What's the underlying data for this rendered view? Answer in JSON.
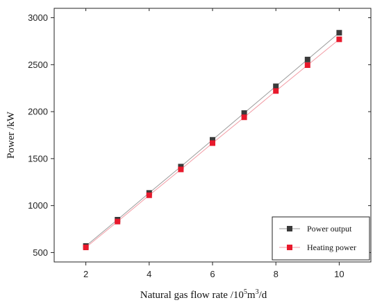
{
  "chart_data": {
    "type": "line",
    "xlabel": "Natural gas flow rate  /10",
    "xlabel_sup1": "5",
    "xlabel_mid": "m",
    "xlabel_sup2": "3",
    "xlabel_end": "/d",
    "ylabel": "Power   /kW",
    "xlim": [
      1,
      11
    ],
    "ylim": [
      400,
      3100
    ],
    "x_ticks": [
      2,
      4,
      6,
      8,
      10
    ],
    "y_ticks": [
      500,
      1000,
      1500,
      2000,
      2500,
      3000
    ],
    "x": [
      2,
      3,
      4,
      5,
      6,
      7,
      8,
      9,
      10
    ],
    "series": [
      {
        "name": "Power output",
        "marker_color": "#3a3a3a",
        "line_color": "#9a9a9a",
        "values": [
          570,
          850,
          1135,
          1415,
          1700,
          1985,
          2270,
          2555,
          2840
        ]
      },
      {
        "name": "Heating power",
        "marker_color": "#e8192c",
        "line_color": "#f29aa3",
        "values": [
          555,
          830,
          1110,
          1385,
          1665,
          1940,
          2220,
          2495,
          2770
        ]
      }
    ],
    "legend_position": "bottom-right",
    "grid": false
  }
}
